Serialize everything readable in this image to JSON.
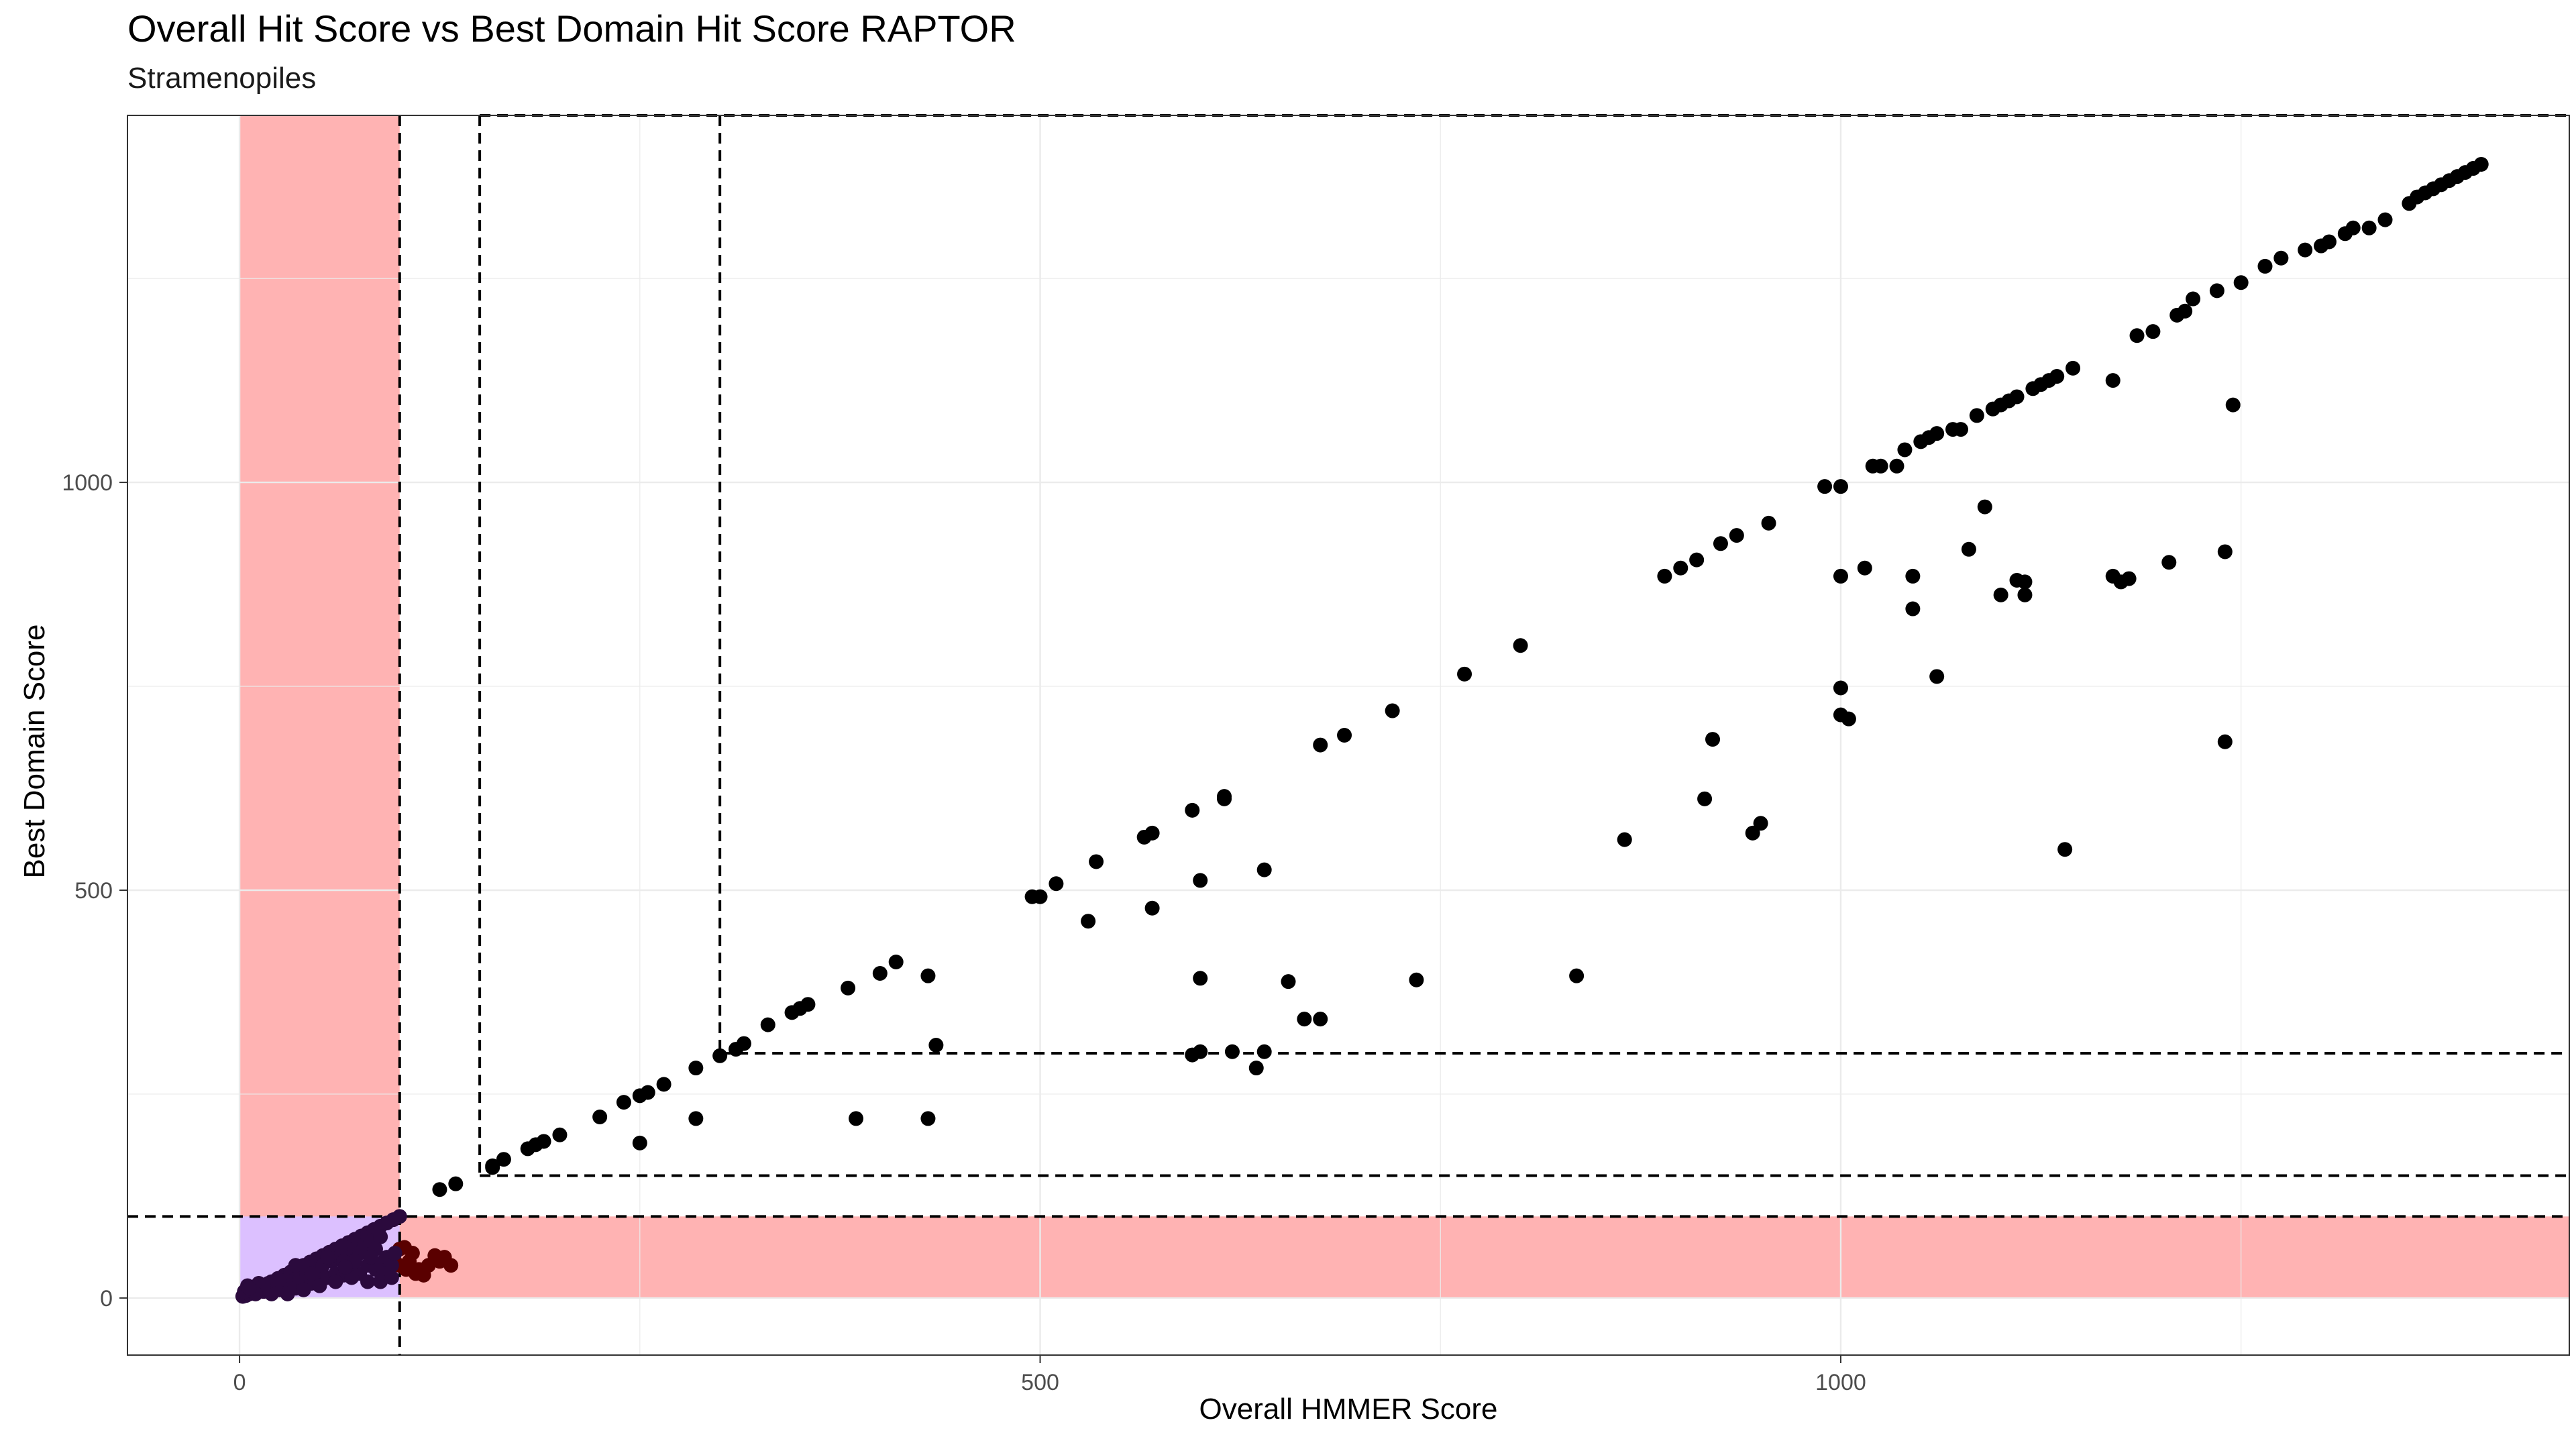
{
  "chart_data": {
    "type": "scatter",
    "title": "Overall Hit Score vs Best Domain Hit Score RAPTOR",
    "subtitle": "Stramenopiles",
    "xlabel": "Overall HMMER Score",
    "ylabel": "Best Domain Score",
    "xlim": [
      -70,
      1455
    ],
    "ylim": [
      -70,
      1450
    ],
    "grid": true,
    "x_ticks": [
      0,
      500,
      1000
    ],
    "y_ticks": [
      0,
      500,
      1000
    ],
    "thresholds": {
      "vertical": [
        100,
        150,
        300
      ],
      "horizontal": [
        100,
        150,
        300
      ]
    },
    "shaded_regions": [
      {
        "label": "x below 100",
        "x": [
          0,
          100
        ],
        "y": [
          0,
          1450
        ],
        "color": "#ffb3b3"
      },
      {
        "label": "y below 100",
        "x": [
          0,
          1455
        ],
        "y": [
          0,
          100
        ],
        "color": "#ffb3b3"
      },
      {
        "label": "both below 100",
        "x": [
          0,
          100
        ],
        "y": [
          0,
          100
        ],
        "color": "#dcc0ff"
      }
    ],
    "series": [
      {
        "color": "#000000",
        "points": [
          [
            125,
            133
          ],
          [
            135,
            140
          ],
          [
            158,
            160
          ],
          [
            158,
            162
          ],
          [
            165,
            170
          ],
          [
            180,
            183
          ],
          [
            185,
            188
          ],
          [
            190,
            192
          ],
          [
            200,
            200
          ],
          [
            225,
            222
          ],
          [
            240,
            240
          ],
          [
            250,
            248
          ],
          [
            255,
            252
          ],
          [
            265,
            262
          ],
          [
            285,
            282
          ],
          [
            300,
            297
          ],
          [
            310,
            305
          ],
          [
            315,
            312
          ],
          [
            330,
            335
          ],
          [
            345,
            350
          ],
          [
            350,
            355
          ],
          [
            355,
            360
          ],
          [
            380,
            380
          ],
          [
            400,
            398
          ],
          [
            410,
            412
          ],
          [
            250,
            190
          ],
          [
            285,
            220
          ],
          [
            385,
            220
          ],
          [
            430,
            220
          ],
          [
            430,
            395
          ],
          [
            435,
            310
          ],
          [
            495,
            492
          ],
          [
            500,
            492
          ],
          [
            510,
            508
          ],
          [
            530,
            462
          ],
          [
            535,
            535
          ],
          [
            565,
            565
          ],
          [
            570,
            570
          ],
          [
            570,
            478
          ],
          [
            595,
            598
          ],
          [
            600,
            512
          ],
          [
            600,
            392
          ],
          [
            615,
            615
          ],
          [
            615,
            612
          ],
          [
            595,
            298
          ],
          [
            600,
            302
          ],
          [
            620,
            302
          ],
          [
            635,
            282
          ],
          [
            640,
            302
          ],
          [
            640,
            525
          ],
          [
            655,
            388
          ],
          [
            665,
            342
          ],
          [
            675,
            342
          ],
          [
            675,
            678
          ],
          [
            690,
            690
          ],
          [
            720,
            720
          ],
          [
            735,
            390
          ],
          [
            765,
            765
          ],
          [
            800,
            800
          ],
          [
            835,
            395
          ],
          [
            865,
            562
          ],
          [
            890,
            885
          ],
          [
            900,
            895
          ],
          [
            910,
            905
          ],
          [
            915,
            612
          ],
          [
            920,
            685
          ],
          [
            925,
            925
          ],
          [
            935,
            935
          ],
          [
            945,
            570
          ],
          [
            950,
            582
          ],
          [
            955,
            950
          ],
          [
            990,
            995
          ],
          [
            1000,
            995
          ],
          [
            1000,
            885
          ],
          [
            1000,
            715
          ],
          [
            1000,
            748
          ],
          [
            1005,
            710
          ],
          [
            1015,
            895
          ],
          [
            1020,
            1020
          ],
          [
            1025,
            1020
          ],
          [
            1035,
            1020
          ],
          [
            1040,
            1040
          ],
          [
            1045,
            845
          ],
          [
            1045,
            885
          ],
          [
            1050,
            1050
          ],
          [
            1055,
            1055
          ],
          [
            1060,
            762
          ],
          [
            1060,
            1060
          ],
          [
            1070,
            1065
          ],
          [
            1075,
            1065
          ],
          [
            1080,
            918
          ],
          [
            1085,
            1082
          ],
          [
            1090,
            970
          ],
          [
            1095,
            1090
          ],
          [
            1100,
            1095
          ],
          [
            1100,
            862
          ],
          [
            1105,
            1100
          ],
          [
            1110,
            880
          ],
          [
            1110,
            1105
          ],
          [
            1115,
            878
          ],
          [
            1115,
            862
          ],
          [
            1120,
            1115
          ],
          [
            1125,
            1120
          ],
          [
            1130,
            1125
          ],
          [
            1135,
            1130
          ],
          [
            1140,
            550
          ],
          [
            1145,
            1140
          ],
          [
            1170,
            1125
          ],
          [
            1170,
            885
          ],
          [
            1175,
            878
          ],
          [
            1180,
            882
          ],
          [
            1185,
            1180
          ],
          [
            1195,
            1185
          ],
          [
            1205,
            902
          ],
          [
            1210,
            1205
          ],
          [
            1215,
            1210
          ],
          [
            1220,
            1225
          ],
          [
            1235,
            1235
          ],
          [
            1240,
            682
          ],
          [
            1240,
            915
          ],
          [
            1245,
            1095
          ],
          [
            1250,
            1245
          ],
          [
            1265,
            1265
          ],
          [
            1275,
            1275
          ],
          [
            1290,
            1285
          ],
          [
            1300,
            1290
          ],
          [
            1305,
            1295
          ],
          [
            1315,
            1305
          ],
          [
            1320,
            1312
          ],
          [
            1330,
            1312
          ],
          [
            1340,
            1322
          ],
          [
            1355,
            1342
          ],
          [
            1360,
            1350
          ],
          [
            1365,
            1355
          ],
          [
            1370,
            1360
          ],
          [
            1375,
            1365
          ],
          [
            1380,
            1370
          ],
          [
            1385,
            1375
          ],
          [
            1390,
            1380
          ],
          [
            1395,
            1385
          ],
          [
            1400,
            1390
          ]
        ]
      },
      {
        "color": "#5a0000",
        "points": [
          [
            95,
            50
          ],
          [
            100,
            60
          ],
          [
            103,
            62
          ],
          [
            106,
            45
          ],
          [
            108,
            55
          ],
          [
            110,
            30
          ],
          [
            112,
            35
          ],
          [
            115,
            28
          ],
          [
            118,
            40
          ],
          [
            122,
            52
          ],
          [
            125,
            45
          ],
          [
            128,
            50
          ],
          [
            132,
            40
          ],
          [
            100,
            40
          ],
          [
            104,
            35
          ]
        ]
      },
      {
        "color": "#2b0a3d",
        "points": [
          [
            2,
            2
          ],
          [
            4,
            3
          ],
          [
            6,
            5
          ],
          [
            8,
            8
          ],
          [
            10,
            10
          ],
          [
            12,
            12
          ],
          [
            14,
            14
          ],
          [
            16,
            16
          ],
          [
            18,
            18
          ],
          [
            20,
            20
          ],
          [
            24,
            24
          ],
          [
            28,
            28
          ],
          [
            32,
            32
          ],
          [
            36,
            36
          ],
          [
            40,
            40
          ],
          [
            44,
            44
          ],
          [
            48,
            48
          ],
          [
            52,
            52
          ],
          [
            56,
            56
          ],
          [
            60,
            60
          ],
          [
            64,
            64
          ],
          [
            68,
            68
          ],
          [
            72,
            72
          ],
          [
            76,
            76
          ],
          [
            80,
            80
          ],
          [
            84,
            84
          ],
          [
            88,
            88
          ],
          [
            92,
            92
          ],
          [
            96,
            96
          ],
          [
            100,
            100
          ],
          [
            5,
            15
          ],
          [
            8,
            10
          ],
          [
            12,
            18
          ],
          [
            15,
            8
          ],
          [
            18,
            12
          ],
          [
            20,
            5
          ],
          [
            22,
            15
          ],
          [
            25,
            10
          ],
          [
            28,
            18
          ],
          [
            30,
            8
          ],
          [
            32,
            20
          ],
          [
            35,
            12
          ],
          [
            38,
            25
          ],
          [
            40,
            15
          ],
          [
            42,
            30
          ],
          [
            45,
            18
          ],
          [
            48,
            35
          ],
          [
            50,
            22
          ],
          [
            52,
            40
          ],
          [
            55,
            25
          ],
          [
            58,
            45
          ],
          [
            60,
            30
          ],
          [
            62,
            50
          ],
          [
            65,
            28
          ],
          [
            68,
            55
          ],
          [
            70,
            35
          ],
          [
            72,
            60
          ],
          [
            75,
            30
          ],
          [
            78,
            65
          ],
          [
            80,
            40
          ],
          [
            82,
            70
          ],
          [
            85,
            35
          ],
          [
            88,
            75
          ],
          [
            90,
            45
          ],
          [
            92,
            50
          ],
          [
            95,
            40
          ],
          [
            97,
            55
          ],
          [
            35,
            40
          ],
          [
            45,
            30
          ],
          [
            55,
            50
          ],
          [
            65,
            45
          ],
          [
            75,
            55
          ],
          [
            85,
            60
          ],
          [
            60,
            20
          ],
          [
            70,
            25
          ],
          [
            80,
            20
          ],
          [
            90,
            30
          ],
          [
            50,
            15
          ],
          [
            40,
            10
          ],
          [
            30,
            5
          ],
          [
            25,
            22
          ],
          [
            15,
            15
          ],
          [
            10,
            5
          ],
          [
            3,
            8
          ],
          [
            6,
            12
          ],
          [
            88,
            20
          ],
          [
            95,
            25
          ],
          [
            72,
            45
          ],
          [
            82,
            50
          ],
          [
            66,
            38
          ]
        ]
      }
    ]
  }
}
